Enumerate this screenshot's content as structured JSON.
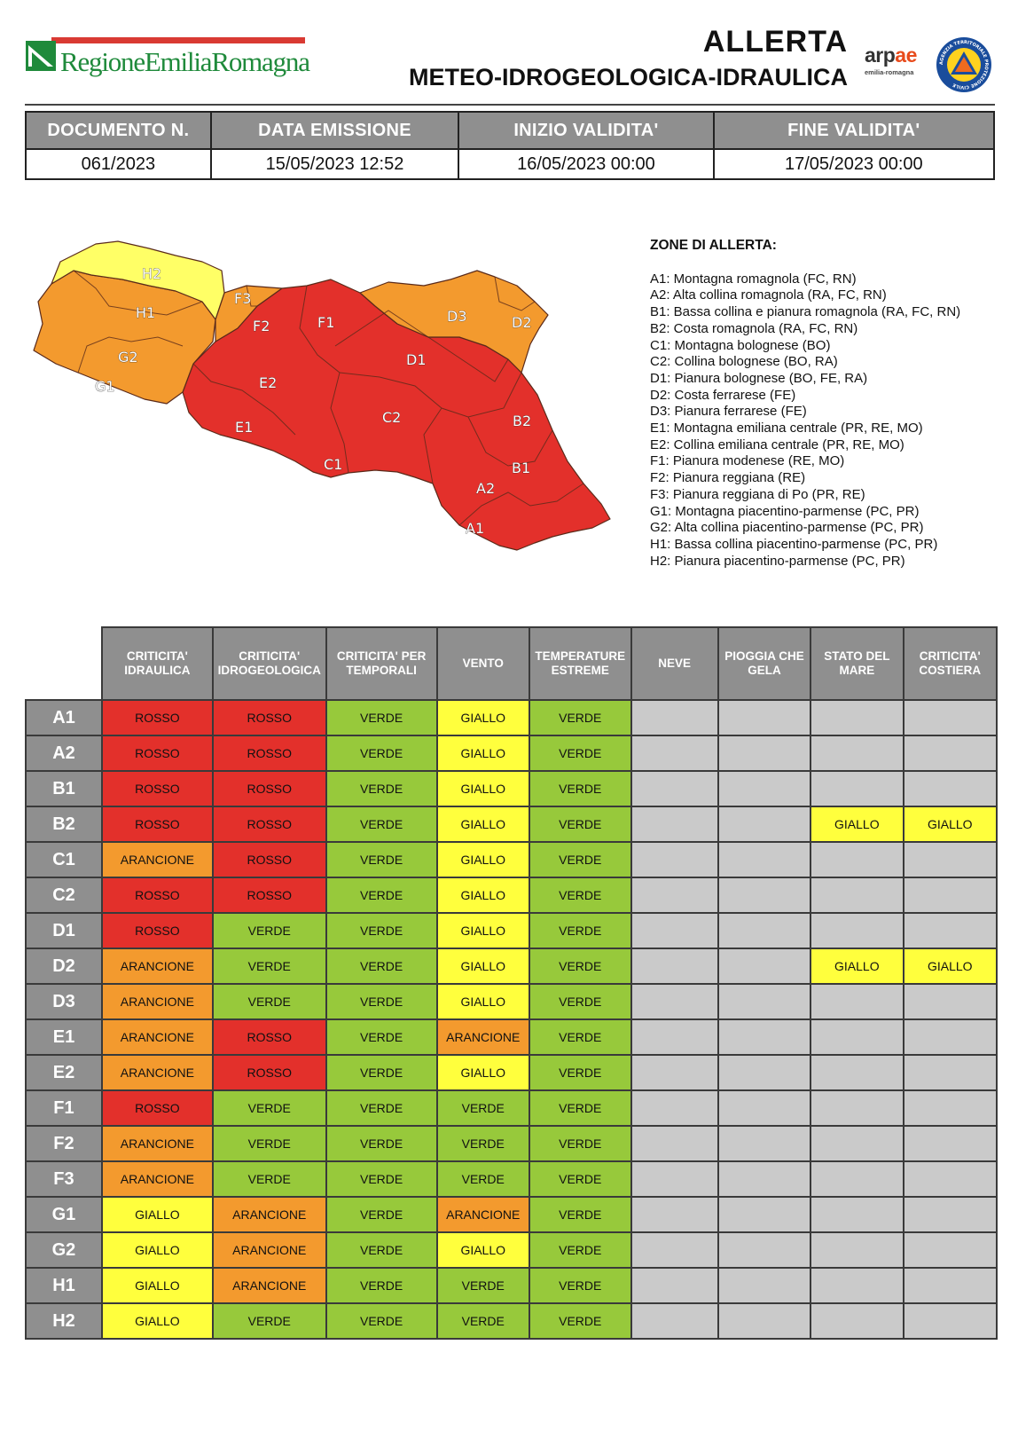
{
  "header": {
    "logo_text": "RegioneEmiliaRomagna",
    "title_line1": "ALLERTA",
    "title_line2": "METEO-IDROGEOLOGICA-IDRAULICA",
    "arpae_name": "arpae",
    "arpae_sub": "emilia-romagna",
    "pc_logo_text": "AGENZIA TERRITORIALE PROTEZIONE CIVILE"
  },
  "info": {
    "headers": [
      "DOCUMENTO N.",
      "DATA EMISSIONE",
      "INIZIO VALIDITA'",
      "FINE VALIDITA'"
    ],
    "values": [
      "061/2023",
      "15/05/2023 12:52",
      "16/05/2023 00:00",
      "17/05/2023 00:00"
    ]
  },
  "map": {
    "labels": [
      "H2",
      "H1",
      "G2",
      "G1",
      "F3",
      "F2",
      "F1",
      "E2",
      "E1",
      "C1",
      "C2",
      "D1",
      "D3",
      "D2",
      "B2",
      "B1",
      "A2",
      "A1"
    ],
    "colors": {
      "rosso": "#e3302b",
      "arancione": "#f39a2e",
      "giallo": "#ffff66"
    }
  },
  "legend": {
    "title": "ZONE DI ALLERTA:",
    "items": [
      "A1: Montagna romagnola (FC, RN)",
      "A2: Alta collina romagnola (RA, FC, RN)",
      "B1: Bassa collina e pianura romagnola (RA, FC, RN)",
      "B2: Costa romagnola (RA, FC, RN)",
      "C1: Montagna bolognese (BO)",
      "C2: Collina bolognese (BO, RA)",
      "D1: Pianura bolognese (BO, FE, RA)",
      "D2: Costa ferrarese (FE)",
      "D3: Pianura ferrarese (FE)",
      "E1: Montagna emiliana centrale (PR, RE, MO)",
      "E2: Collina emiliana centrale (PR, RE, MO)",
      "F1: Pianura modenese (RE, MO)",
      "F2: Pianura reggiana (RE)",
      "F3: Pianura reggiana di Po (PR, RE)",
      "G1: Montagna piacentino-parmense (PC, PR)",
      "G2: Alta collina piacentino-parmense (PC, PR)",
      "H1: Bassa collina piacentino-parmense (PC, PR)",
      "H2: Pianura piacentino-parmense (PC, PR)"
    ]
  },
  "alerts": {
    "columns": [
      "CRITICITA' IDRAULICA",
      "CRITICITA' IDROGEOLOGICA",
      "CRITICITA' PER TEMPORALI",
      "VENTO",
      "TEMPERATURE ESTREME",
      "NEVE",
      "PIOGGIA CHE GELA",
      "STATO DEL MARE",
      "CRITICITA' COSTIERA"
    ],
    "rows": [
      {
        "zone": "A1",
        "values": [
          "ROSSO",
          "ROSSO",
          "VERDE",
          "GIALLO",
          "VERDE",
          "",
          "",
          "",
          ""
        ]
      },
      {
        "zone": "A2",
        "values": [
          "ROSSO",
          "ROSSO",
          "VERDE",
          "GIALLO",
          "VERDE",
          "",
          "",
          "",
          ""
        ]
      },
      {
        "zone": "B1",
        "values": [
          "ROSSO",
          "ROSSO",
          "VERDE",
          "GIALLO",
          "VERDE",
          "",
          "",
          "",
          ""
        ]
      },
      {
        "zone": "B2",
        "values": [
          "ROSSO",
          "ROSSO",
          "VERDE",
          "GIALLO",
          "VERDE",
          "",
          "",
          "GIALLO",
          "GIALLO"
        ]
      },
      {
        "zone": "C1",
        "values": [
          "ARANCIONE",
          "ROSSO",
          "VERDE",
          "GIALLO",
          "VERDE",
          "",
          "",
          "",
          ""
        ]
      },
      {
        "zone": "C2",
        "values": [
          "ROSSO",
          "ROSSO",
          "VERDE",
          "GIALLO",
          "VERDE",
          "",
          "",
          "",
          ""
        ]
      },
      {
        "zone": "D1",
        "values": [
          "ROSSO",
          "VERDE",
          "VERDE",
          "GIALLO",
          "VERDE",
          "",
          "",
          "",
          ""
        ]
      },
      {
        "zone": "D2",
        "values": [
          "ARANCIONE",
          "VERDE",
          "VERDE",
          "GIALLO",
          "VERDE",
          "",
          "",
          "GIALLO",
          "GIALLO"
        ]
      },
      {
        "zone": "D3",
        "values": [
          "ARANCIONE",
          "VERDE",
          "VERDE",
          "GIALLO",
          "VERDE",
          "",
          "",
          "",
          ""
        ]
      },
      {
        "zone": "E1",
        "values": [
          "ARANCIONE",
          "ROSSO",
          "VERDE",
          "ARANCIONE",
          "VERDE",
          "",
          "",
          "",
          ""
        ]
      },
      {
        "zone": "E2",
        "values": [
          "ARANCIONE",
          "ROSSO",
          "VERDE",
          "GIALLO",
          "VERDE",
          "",
          "",
          "",
          ""
        ]
      },
      {
        "zone": "F1",
        "values": [
          "ROSSO",
          "VERDE",
          "VERDE",
          "VERDE",
          "VERDE",
          "",
          "",
          "",
          ""
        ]
      },
      {
        "zone": "F2",
        "values": [
          "ARANCIONE",
          "VERDE",
          "VERDE",
          "VERDE",
          "VERDE",
          "",
          "",
          "",
          ""
        ]
      },
      {
        "zone": "F3",
        "values": [
          "ARANCIONE",
          "VERDE",
          "VERDE",
          "VERDE",
          "VERDE",
          "",
          "",
          "",
          ""
        ]
      },
      {
        "zone": "G1",
        "values": [
          "GIALLO",
          "ARANCIONE",
          "VERDE",
          "ARANCIONE",
          "VERDE",
          "",
          "",
          "",
          ""
        ]
      },
      {
        "zone": "G2",
        "values": [
          "GIALLO",
          "ARANCIONE",
          "VERDE",
          "GIALLO",
          "VERDE",
          "",
          "",
          "",
          ""
        ]
      },
      {
        "zone": "H1",
        "values": [
          "GIALLO",
          "ARANCIONE",
          "VERDE",
          "VERDE",
          "VERDE",
          "",
          "",
          "",
          ""
        ]
      },
      {
        "zone": "H2",
        "values": [
          "GIALLO",
          "VERDE",
          "VERDE",
          "VERDE",
          "VERDE",
          "",
          "",
          "",
          ""
        ]
      }
    ]
  }
}
